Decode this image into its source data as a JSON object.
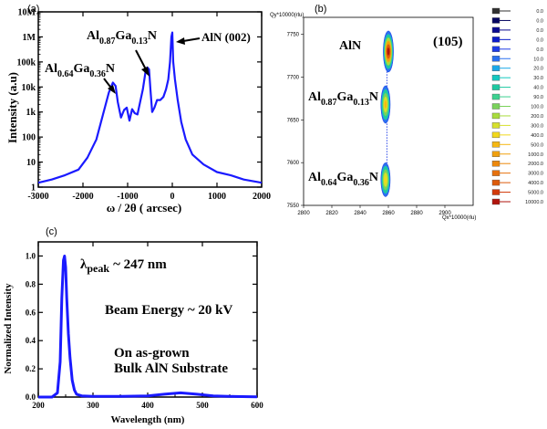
{
  "panels": {
    "a": {
      "label": "(a)"
    },
    "b": {
      "label": "(b)"
    },
    "c": {
      "label": "(c)"
    }
  },
  "chart_data": [
    {
      "id": "a",
      "type": "line",
      "xlabel": "ω / 2θ ( arcsec)",
      "ylabel": "Intensity (a.u)",
      "xlim": [
        -3000,
        2000
      ],
      "ylim": [
        1,
        10000000
      ],
      "yscale": "log",
      "xticks": [
        -3000,
        -2000,
        -1000,
        0,
        1000,
        2000
      ],
      "yticks": [
        {
          "value": 1,
          "label": "1"
        },
        {
          "value": 10,
          "label": "10"
        },
        {
          "value": 100,
          "label": "100"
        },
        {
          "value": 1000,
          "label": "1k"
        },
        {
          "value": 10000,
          "label": "10k"
        },
        {
          "value": 100000,
          "label": "100k"
        },
        {
          "value": 1000000,
          "label": "1M"
        },
        {
          "value": 10000000,
          "label": "10M"
        }
      ],
      "color": "#1a1aff",
      "series": [
        {
          "x": [
            -3000,
            -2700,
            -2400,
            -2100,
            -1900,
            -1700,
            -1550,
            -1420,
            -1330,
            -1270,
            -1220,
            -1150,
            -1080,
            -1020,
            -960,
            -900,
            -840,
            -780,
            -720,
            -660,
            -600,
            -560,
            -520,
            -490,
            -450,
            -400,
            -340,
            -270,
            -200,
            -140,
            -90,
            -50,
            -20,
            0,
            20,
            60,
            120,
            200,
            300,
            450,
            700,
            1000,
            1300,
            1600,
            2000
          ],
          "y": [
            1.5,
            2,
            3,
            5,
            15,
            80,
            800,
            6000,
            15000,
            11000,
            2500,
            600,
            1200,
            1500,
            450,
            1300,
            900,
            800,
            2500,
            8000,
            40000,
            60000,
            50000,
            8000,
            1000,
            1500,
            3000,
            3000,
            4000,
            8000,
            20000,
            100000,
            1000000,
            1500000,
            100000,
            20000,
            3000,
            400,
            80,
            20,
            8,
            4,
            3,
            2,
            1.5
          ]
        }
      ],
      "annotations": [
        {
          "base": "Al",
          "sub1": "0.64",
          "mid": "Ga",
          "sub2": "0.36",
          "tail": "N",
          "x": -1280,
          "y": 15000
        },
        {
          "base": "Al",
          "sub1": "0.87",
          "mid": "Ga",
          "sub2": "0.13",
          "tail": "N",
          "x": -530,
          "y": 60000
        },
        {
          "text": "AlN (002)",
          "x": 0,
          "y": 1500000
        }
      ]
    },
    {
      "id": "b",
      "type": "heatmap",
      "xlabel": "Qx*10000(rlu)",
      "ylabel": "Qy*10000(rlu)",
      "xlim": [
        2800,
        2920
      ],
      "ylim": [
        7550,
        7770
      ],
      "xticks": [
        2800,
        2820,
        2840,
        2860,
        2880,
        2900
      ],
      "yticks": [
        {
          "value": 7550,
          "label": "7550"
        },
        {
          "value": 7600,
          "label": "7600"
        },
        {
          "value": 7650,
          "label": "7650"
        },
        {
          "value": 7700,
          "label": "7700"
        },
        {
          "value": 7750,
          "label": "7750"
        }
      ],
      "reflection": "(105)",
      "spots": [
        {
          "name": "AlN",
          "qx": 2860,
          "qy": 7730,
          "max_level": 10000.0
        },
        {
          "name": "Al0.87Ga0.13N",
          "qx": 2858,
          "qy": 7668,
          "max_level": 1000.0
        },
        {
          "name": "Al0.64Ga0.36N",
          "qx": 2858,
          "qy": 7580,
          "max_level": 800.0
        }
      ],
      "spot_labels": [
        {
          "text": "AlN"
        },
        {
          "base": "Al",
          "sub1": "0.87",
          "mid": "Ga",
          "sub2": "0.13",
          "tail": "N"
        },
        {
          "base": "Al",
          "sub1": "0.64",
          "mid": "Ga",
          "sub2": "0.36",
          "tail": "N"
        }
      ],
      "legend": {
        "levels": [
          "0.0",
          "0.0",
          "0.0",
          "0.0",
          "0.0",
          "10.0",
          "20.0",
          "30.0",
          "40.0",
          "90.0",
          "100.0",
          "200.0",
          "300.0",
          "400.0",
          "500.0",
          "1000.0",
          "2000.0",
          "3000.0",
          "4000.0",
          "5000.0",
          "10000.0"
        ],
        "colors": [
          "#303030",
          "#050560",
          "#0a0a90",
          "#0c1cc8",
          "#1e3ce6",
          "#2a70f0",
          "#1aa8e8",
          "#14c8c0",
          "#1ec8a0",
          "#3cd290",
          "#7ad25a",
          "#a8dc3c",
          "#d6e02c",
          "#f2d81c",
          "#f5b814",
          "#f0a00e",
          "#ec880c",
          "#e6700c",
          "#dc5a0a",
          "#d23a0a",
          "#b0140c"
        ]
      }
    },
    {
      "id": "c",
      "type": "line",
      "xlabel": "Wavelength (nm)",
      "ylabel": "Normalized Intensity",
      "xlim": [
        200,
        600
      ],
      "ylim": [
        0,
        1.1
      ],
      "xticks": [
        200,
        300,
        400,
        500,
        600
      ],
      "yticks": [
        0.0,
        0.2,
        0.4,
        0.6,
        0.8,
        1.0
      ],
      "ytick_labels": [
        "0.0",
        "0.2",
        "0.4",
        "0.6",
        "0.8",
        "1.0"
      ],
      "color": "#1a1aff",
      "series": [
        {
          "x": [
            200,
            225,
            235,
            240,
            243,
            246,
            248,
            250,
            252,
            255,
            258,
            262,
            266,
            270,
            280,
            300,
            350,
            400,
            430,
            460,
            490,
            520,
            560,
            600
          ],
          "y": [
            0.0,
            0.0,
            0.03,
            0.25,
            0.7,
            0.97,
            1.0,
            0.92,
            0.7,
            0.45,
            0.28,
            0.12,
            0.05,
            0.02,
            0.008,
            0.005,
            0.005,
            0.008,
            0.02,
            0.03,
            0.02,
            0.008,
            0.004,
            0.002
          ]
        }
      ],
      "annotations": {
        "peak_lambda": "λ",
        "peak_sub": "peak",
        "peak_value": "~ 247 nm",
        "beam": "Beam Energy ~ 20 kV",
        "sample_line1": "On as-grown",
        "sample_line2": "Bulk AlN Substrate"
      }
    }
  ]
}
